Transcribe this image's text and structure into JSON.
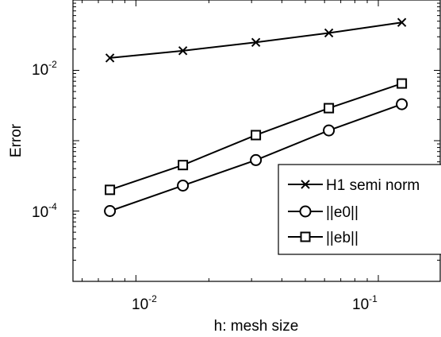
{
  "chart_data": {
    "type": "line",
    "xlabel": "h: mesh size",
    "ylabel": "Error",
    "xscale": "log",
    "yscale": "log",
    "xlim": [
      0.0055,
      0.18
    ],
    "ylim": [
      1e-05,
      0.1
    ],
    "x_ticks": [
      {
        "base": "10",
        "exp": "-2",
        "value": 0.01
      },
      {
        "base": "10",
        "exp": "-1",
        "value": 0.1
      }
    ],
    "y_ticks": [
      {
        "base": "10",
        "exp": "-4",
        "value": 0.0001
      },
      {
        "base": "10",
        "exp": "-2",
        "value": 0.01
      }
    ],
    "legend_position": "right",
    "x": [
      0.0078125,
      0.015625,
      0.03125,
      0.0625,
      0.125
    ],
    "series": [
      {
        "name": "H1 semi norm",
        "marker": "x",
        "values": [
          0.015,
          0.019,
          0.025,
          0.034,
          0.048
        ]
      },
      {
        "name": "||e0||",
        "marker": "circle",
        "values": [
          0.0001,
          0.00023,
          0.00053,
          0.0014,
          0.0033
        ]
      },
      {
        "name": "||eb||",
        "marker": "square",
        "values": [
          0.0002,
          0.00045,
          0.0012,
          0.0029,
          0.0065
        ]
      }
    ]
  }
}
